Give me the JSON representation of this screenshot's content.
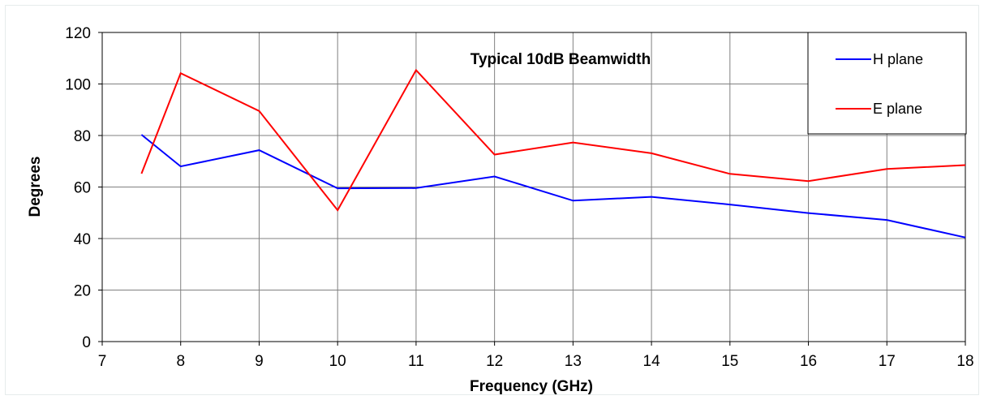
{
  "chart_data": {
    "type": "line",
    "title": "Typical 10dB Beamwidth",
    "xlabel": "Frequency  (GHz)",
    "ylabel": "Degrees",
    "xlim": [
      7,
      18
    ],
    "ylim": [
      0,
      120
    ],
    "x_ticks": [
      7,
      8,
      9,
      10,
      11,
      12,
      13,
      14,
      15,
      16,
      17,
      18
    ],
    "y_ticks": [
      0,
      20,
      40,
      60,
      80,
      100,
      120
    ],
    "grid": true,
    "legend_position": "top-right",
    "series": [
      {
        "name": "H plane",
        "color": "#0000ff",
        "x": [
          7.5,
          8,
          9,
          10,
          11,
          12,
          13,
          14,
          15,
          16,
          17,
          18
        ],
        "y": [
          80.3,
          68,
          74.3,
          59.5,
          59.6,
          64.1,
          54.7,
          56.2,
          53.2,
          49.9,
          47.2,
          40.4
        ]
      },
      {
        "name": "E plane",
        "color": "#ff0000",
        "x": [
          7.5,
          8,
          9,
          10,
          11,
          12,
          13,
          14,
          15,
          16,
          17,
          18
        ],
        "y": [
          65.2,
          104.2,
          89.5,
          51,
          105.4,
          72.6,
          77.3,
          73.1,
          65.1,
          62.3,
          67,
          68.5
        ]
      }
    ]
  }
}
